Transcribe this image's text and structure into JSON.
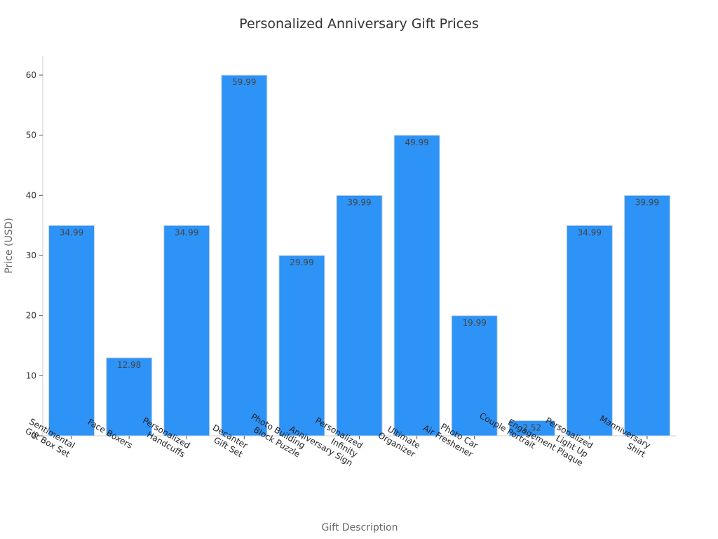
{
  "chart_data": {
    "type": "bar",
    "title": "Personalized Anniversary Gift Prices",
    "xlabel": "Gift Description",
    "ylabel": "Price (USD)",
    "ylim": [
      0,
      63
    ],
    "yticks": [
      0,
      10,
      20,
      30,
      40,
      50,
      60
    ],
    "grid": false,
    "categories": [
      [
        "Sentimental",
        "Gift Box Set"
      ],
      [
        "Face Boxers"
      ],
      [
        "Personalized",
        "Handcuffs"
      ],
      [
        "Decanter",
        "Gift Set"
      ],
      [
        "Photo Building",
        "Block Puzzle"
      ],
      [
        "Personalized",
        "Infinity",
        "Anniversary Sign"
      ],
      [
        "Ultimate",
        "Organizer"
      ],
      [
        "Photo Car",
        "Air Freshener"
      ],
      [
        "Couple Portrait"
      ],
      [
        "Personalized",
        "Light Up",
        "Engagement Plaque"
      ],
      [
        "Manniversary",
        "Shirt"
      ]
    ],
    "values": [
      34.99,
      12.98,
      34.99,
      59.99,
      29.99,
      39.99,
      49.99,
      19.99,
      2.52,
      34.99,
      39.99
    ],
    "data_labels": [
      "34.99",
      "12.98",
      "34.99",
      "59.99",
      "29.99",
      "39.99",
      "49.99",
      "19.99",
      "2.52",
      "34.99",
      "39.99"
    ],
    "colors": {
      "bar": "#2E93F7"
    }
  }
}
